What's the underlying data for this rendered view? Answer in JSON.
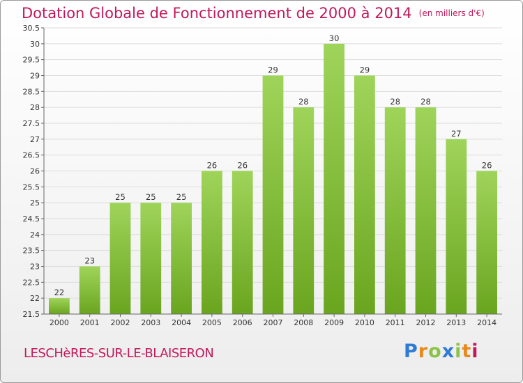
{
  "title": "Dotation Globale de Fonctionnement de 2000 à 2014",
  "unit": "(en milliers d'€)",
  "commune": "LESCHèRES-SUR-LE-BLAISERON",
  "logo": [
    "P",
    "r",
    "o",
    "x",
    "i",
    "t",
    "i"
  ],
  "colors": {
    "bar_light": "#9fd45a",
    "bar_dark": "#6aa51f",
    "title": "#c2185b",
    "grid": "#dcdcdc"
  },
  "chart_data": {
    "type": "bar",
    "title": "Dotation Globale de Fonctionnement de 2000 à 2014",
    "subtitle": "(en milliers d'€)",
    "xlabel": "",
    "ylabel": "",
    "ylim": [
      21.5,
      30.5
    ],
    "yticks": [
      21.5,
      22,
      22.5,
      23,
      23.5,
      24,
      24.5,
      25,
      25.5,
      26,
      26.5,
      27,
      27.5,
      28,
      28.5,
      29,
      29.5,
      30,
      30.5
    ],
    "grid": true,
    "categories": [
      "2000",
      "2001",
      "2002",
      "2003",
      "2004",
      "2005",
      "2006",
      "2007",
      "2008",
      "2009",
      "2010",
      "2011",
      "2012",
      "2013",
      "2014"
    ],
    "values": [
      22,
      23,
      25,
      25,
      25,
      26,
      26,
      29,
      28,
      30,
      29,
      28,
      28,
      27,
      26
    ]
  }
}
